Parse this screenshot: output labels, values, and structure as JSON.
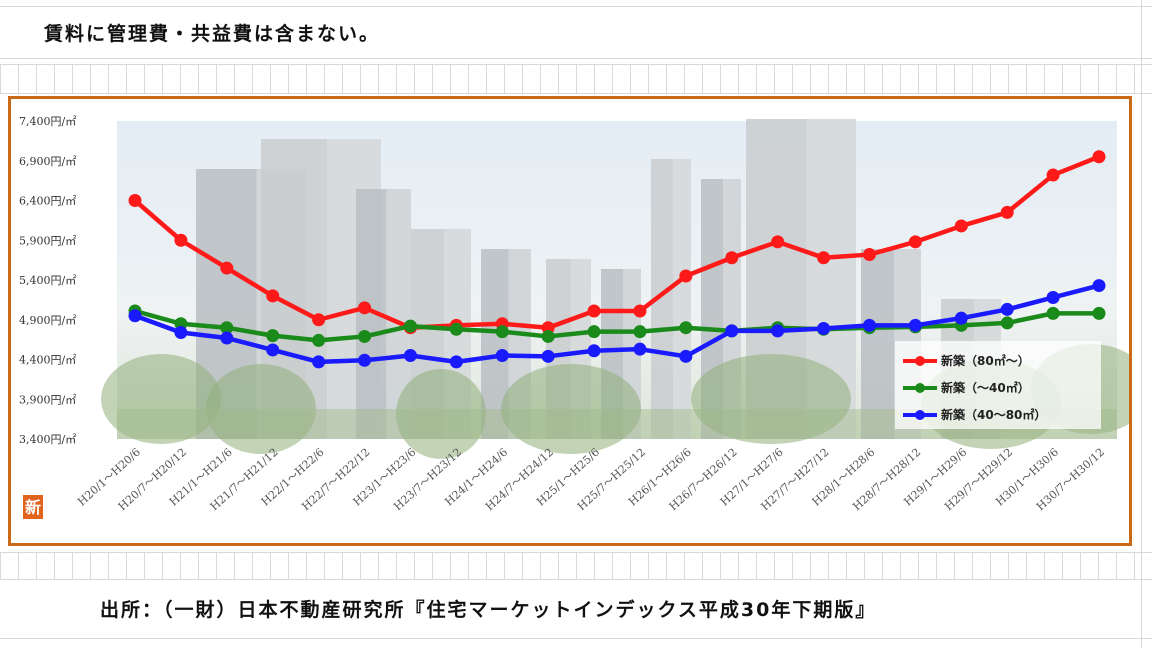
{
  "note": "賃料に管理費・共益費は含まない。",
  "source": "出所：（一財）日本不動産研究所『住宅マーケットインデックス平成30年下期版』",
  "badge": "新",
  "chart_data": {
    "type": "line",
    "title": "",
    "xlabel": "",
    "ylabel": "",
    "ylim": [
      3400,
      7400
    ],
    "y_ticks": [
      "3,400円/㎡",
      "3,900円/㎡",
      "4,400円/㎡",
      "4,900円/㎡",
      "5,400円/㎡",
      "5,900円/㎡",
      "6,400円/㎡",
      "6,900円/㎡",
      "7,400円/㎡"
    ],
    "y_tick_values": [
      3400,
      3900,
      4400,
      4900,
      5400,
      5900,
      6400,
      6900,
      7400
    ],
    "categories": [
      "H20/1～H20/6",
      "H20/7～H20/12",
      "H21/1～H21/6",
      "H21/7～H21/12",
      "H22/1～H22/6",
      "H22/7～H22/12",
      "H23/1～H23/6",
      "H23/7～H23/12",
      "H24/1～H24/6",
      "H24/7～H24/12",
      "H25/1～H25/6",
      "H25/7～H25/12",
      "H26/1～H26/6",
      "H26/7～H26/12",
      "H27/1～H27/6",
      "H27/7～H27/12",
      "H28/1～H28/6",
      "H28/7～H28/12",
      "H29/1～H29/6",
      "H29/7～H29/12",
      "H30/1～H30/6",
      "H30/7～H30/12"
    ],
    "series": [
      {
        "name": "新築（80㎡～）",
        "color": "#ff1a1a",
        "values": [
          6400,
          5900,
          5550,
          5200,
          4900,
          5050,
          4800,
          4830,
          4850,
          4800,
          5010,
          5010,
          5450,
          5680,
          5880,
          5680,
          5720,
          5880,
          6080,
          6250,
          6720,
          6950
        ]
      },
      {
        "name": "新築（～40㎡）",
        "color": "#1a8a1a",
        "values": [
          5010,
          4850,
          4800,
          4700,
          4640,
          4690,
          4820,
          4780,
          4750,
          4690,
          4750,
          4750,
          4800,
          4760,
          4800,
          4780,
          4800,
          4810,
          4830,
          4860,
          4980,
          4980
        ]
      },
      {
        "name": "新築（40～80㎡）",
        "color": "#1a1aff",
        "values": [
          4950,
          4740,
          4670,
          4520,
          4370,
          4390,
          4450,
          4370,
          4450,
          4440,
          4510,
          4530,
          4440,
          4760,
          4760,
          4790,
          4830,
          4830,
          4920,
          5030,
          5180,
          5330
        ]
      }
    ],
    "legend_position": "bottom-right",
    "grid": false
  }
}
